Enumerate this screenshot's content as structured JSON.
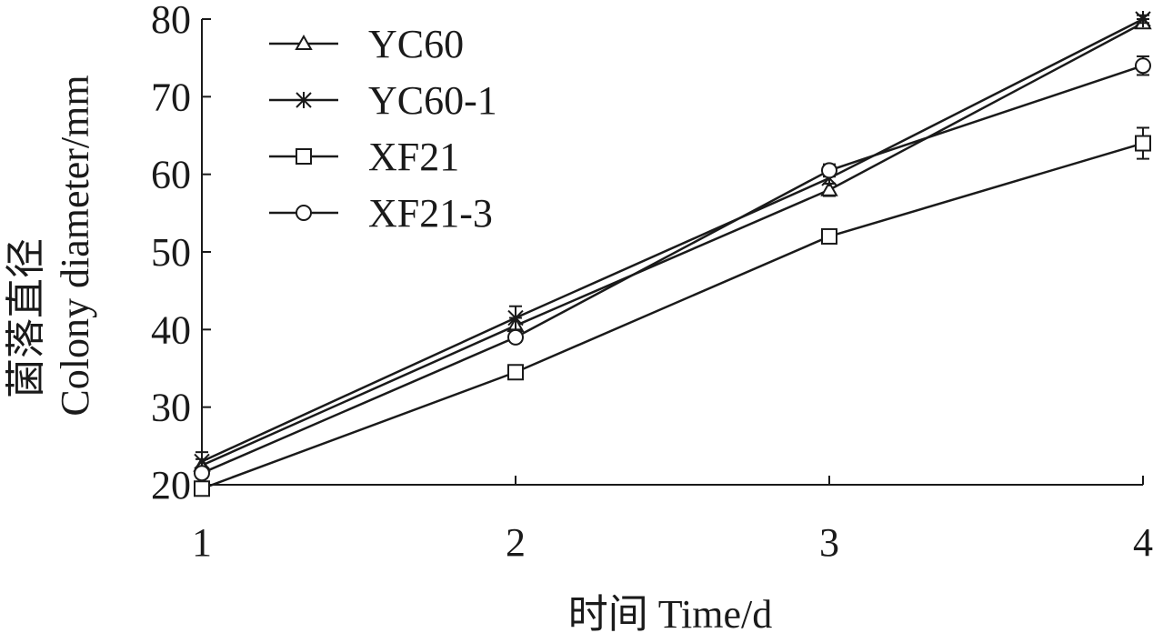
{
  "chart_data": {
    "type": "line",
    "x": [
      1,
      2,
      3,
      4
    ],
    "xlabel": "时间 Time/d",
    "ylabel_line1": "菌落直径",
    "ylabel_line2": "Colony diameter/mm",
    "xlim": [
      1,
      4
    ],
    "ylim": [
      20,
      80
    ],
    "xticks": [
      "1",
      "2",
      "3",
      "4"
    ],
    "yticks": [
      "20",
      "30",
      "40",
      "50",
      "60",
      "70",
      "80"
    ],
    "grid": false,
    "legend_position": "top-left",
    "series": [
      {
        "name": "YC60",
        "marker": "triangle",
        "values": [
          22.5,
          40.5,
          58.0,
          79.5
        ],
        "errors": [
          0.8,
          1.0,
          0.8,
          0.5
        ]
      },
      {
        "name": "YC60-1",
        "marker": "star",
        "values": [
          23.0,
          41.5,
          59.5,
          80.0
        ],
        "errors": [
          1.2,
          1.5,
          0.7,
          0.5
        ]
      },
      {
        "name": "XF21",
        "marker": "square",
        "values": [
          19.5,
          34.5,
          52.0,
          64.0
        ],
        "errors": [
          0.6,
          0.8,
          0.6,
          2.0
        ]
      },
      {
        "name": "XF21-3",
        "marker": "circle",
        "values": [
          21.5,
          39.0,
          60.5,
          74.0
        ],
        "errors": [
          0.6,
          0.6,
          0.8,
          1.2
        ]
      }
    ],
    "line_color": "#1a1a1a"
  }
}
